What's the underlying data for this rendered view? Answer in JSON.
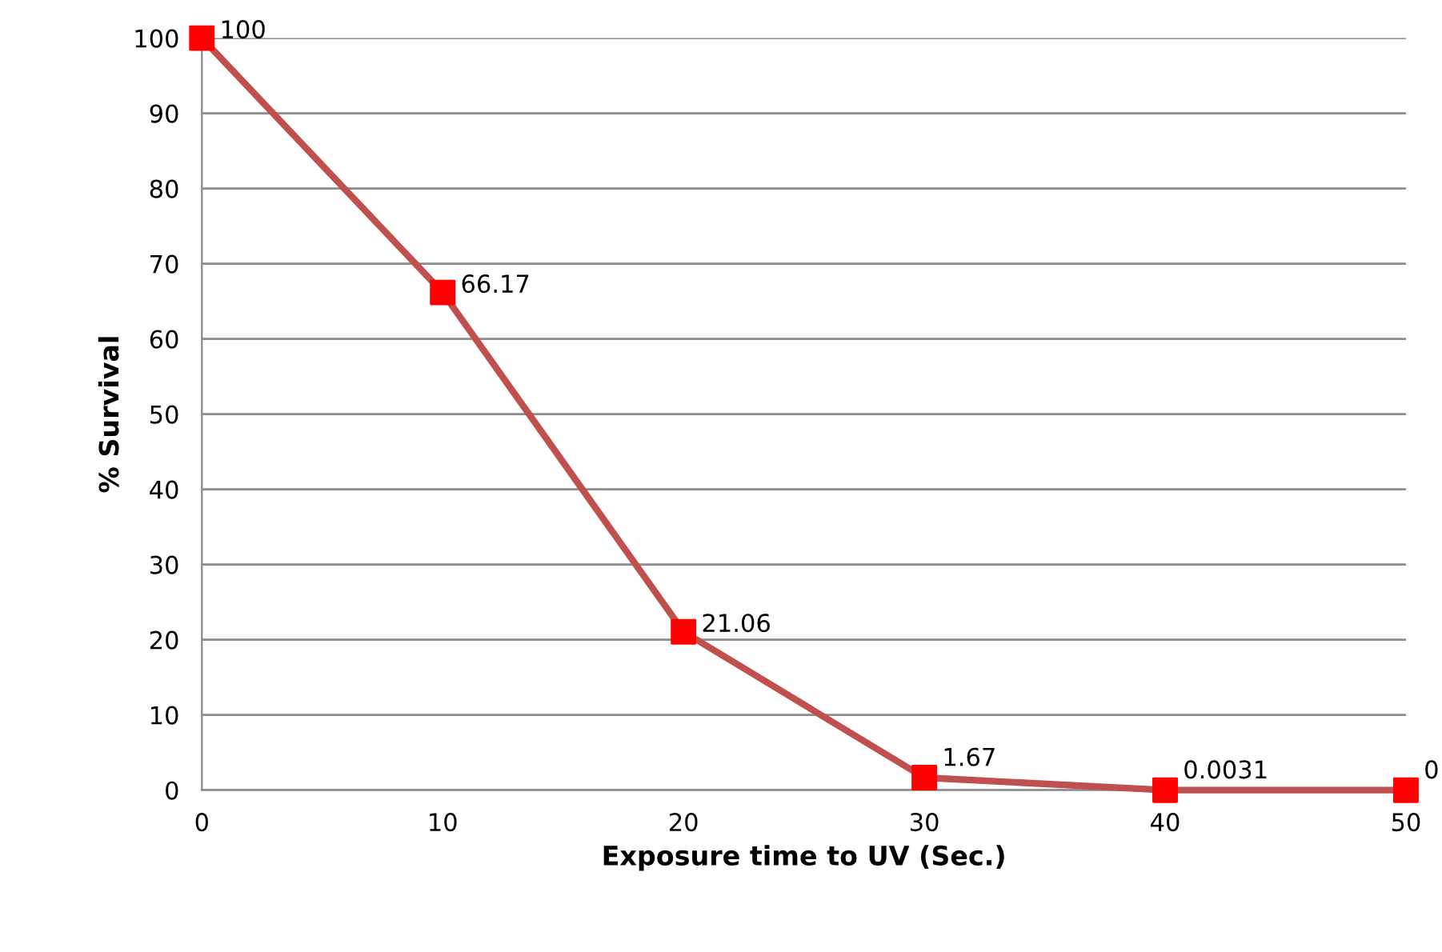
{
  "chart_data": {
    "type": "line",
    "xlabel": "Exposure time to UV (Sec.)",
    "ylabel": "% Survival",
    "x": [
      0,
      10,
      20,
      30,
      40,
      50
    ],
    "series": [
      {
        "color": "#c0504d",
        "colors": [
          "#ff0000",
          "#ff0000",
          "#ff0000",
          "#ff0000",
          "#ff0000",
          "#ff0000"
        ],
        "values": [
          100,
          66.17,
          21.06,
          1.67,
          0.0031,
          0
        ]
      }
    ],
    "xlim": [
      0,
      50
    ],
    "xticks": [
      0,
      10,
      20,
      30,
      40,
      50
    ],
    "ylim": [
      0,
      100
    ],
    "yticks": [
      0,
      10,
      20,
      30,
      40,
      50,
      60,
      70,
      80,
      90,
      100
    ],
    "grid": "y",
    "marker": "square",
    "line_style": "solid",
    "data_labels": true
  }
}
